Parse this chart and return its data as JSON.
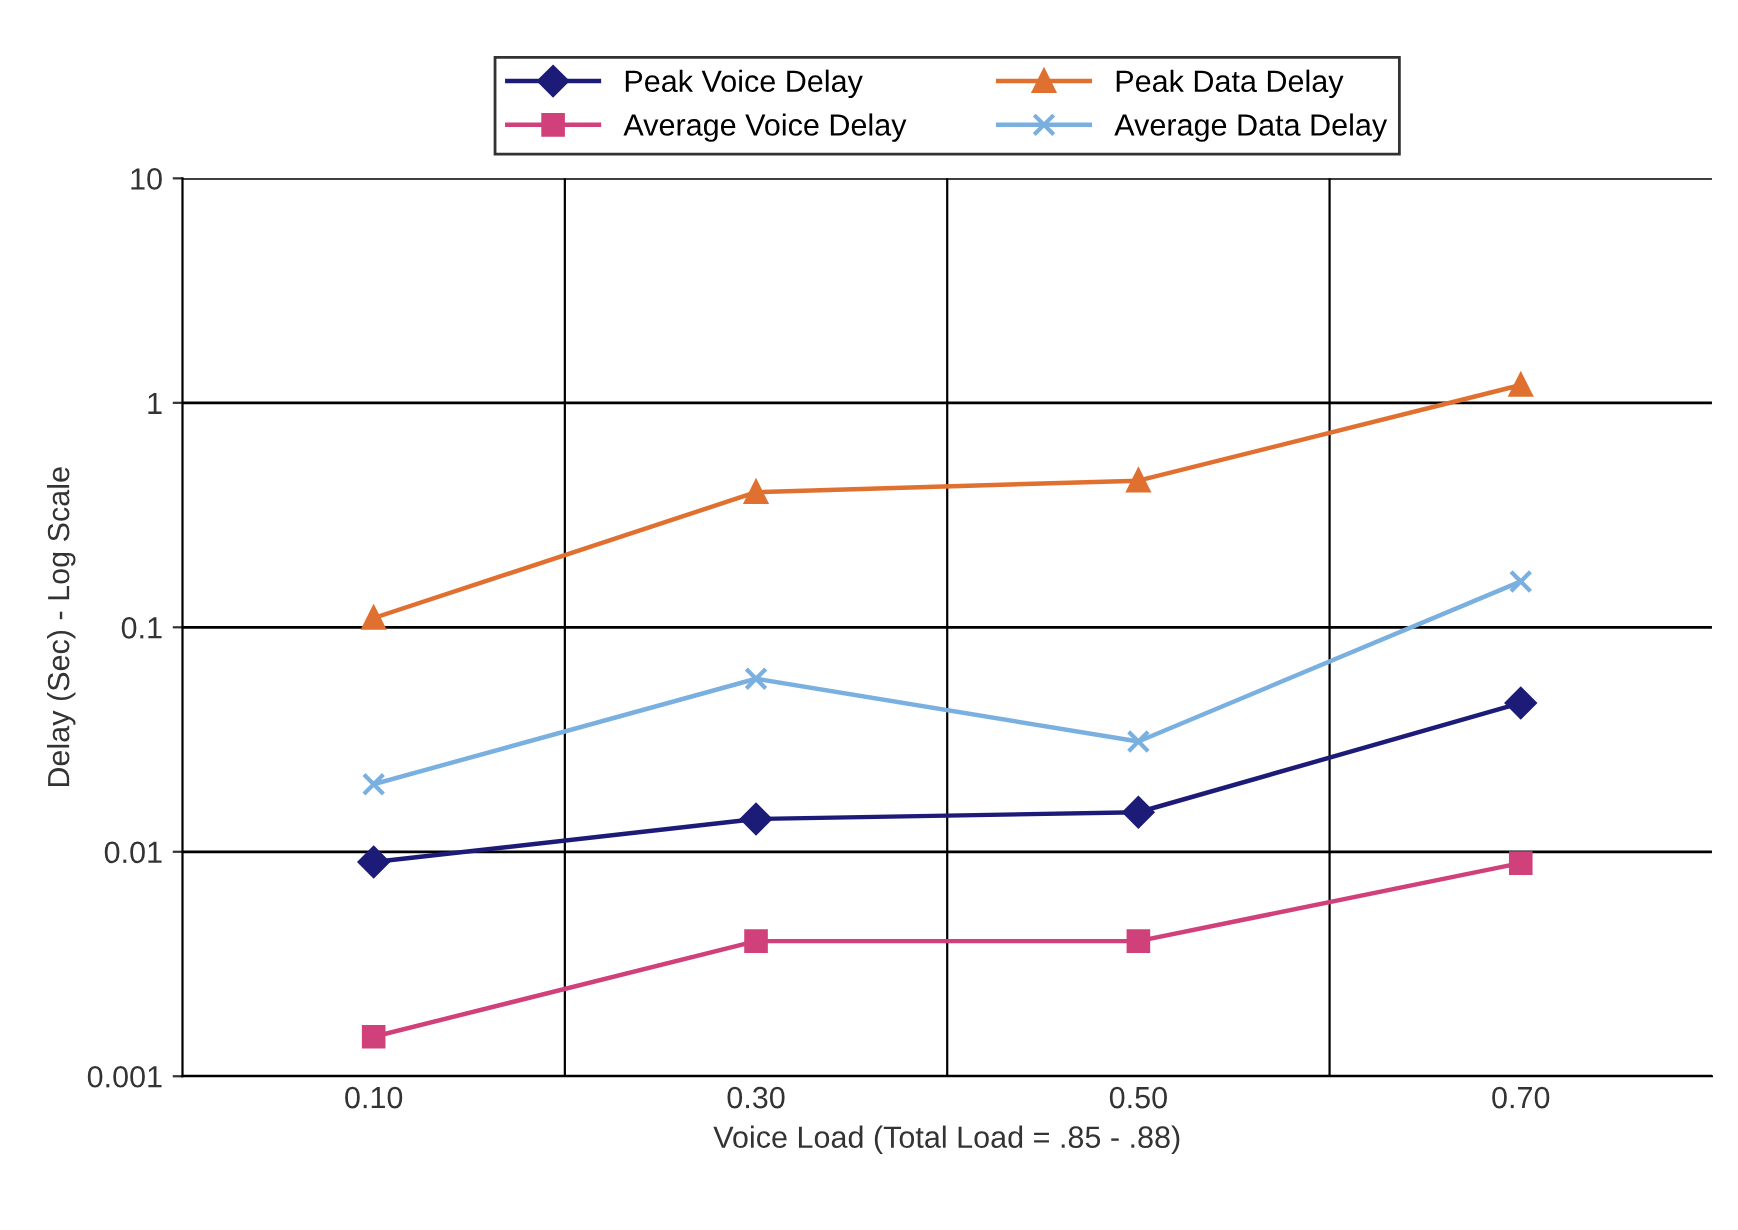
{
  "chart_data": {
    "type": "line",
    "xlabel": "Voice Load (Total Load = .85 - .88)",
    "ylabel": "Delay (Sec) - Log Scale",
    "categories": [
      "0.10",
      "0.30",
      "0.50",
      "0.70"
    ],
    "series": [
      {
        "name": "Peak Voice Delay",
        "color": "#1c1c78",
        "marker": "diamond",
        "values": [
          0.009,
          0.014,
          0.015,
          0.046
        ]
      },
      {
        "name": "Average Voice Delay",
        "color": "#d0407a",
        "marker": "square",
        "values": [
          0.0015,
          0.004,
          0.004,
          0.0089
        ]
      },
      {
        "name": "Peak Data Delay",
        "color": "#e07030",
        "marker": "triangle",
        "values": [
          0.11,
          0.4,
          0.45,
          1.2
        ]
      },
      {
        "name": "Average Data Delay",
        "color": "#7ab0e0",
        "marker": "cross",
        "values": [
          0.02,
          0.059,
          0.031,
          0.16
        ]
      }
    ],
    "log": "y",
    "ylim": [
      0.001,
      10
    ],
    "yticks": [
      0.001,
      0.01,
      0.1,
      1,
      10
    ],
    "grid": true,
    "legend": "top",
    "line_style": "solid"
  }
}
